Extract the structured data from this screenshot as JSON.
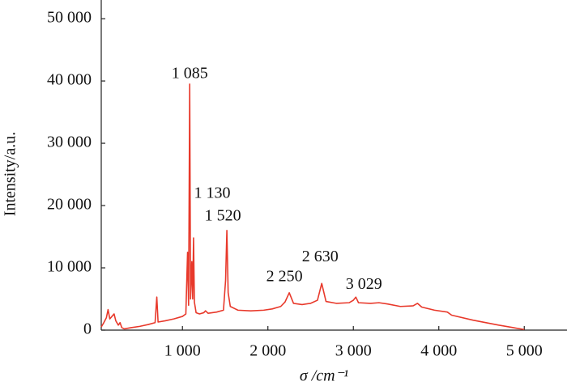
{
  "chart_data": {
    "type": "line",
    "xlabel": "σ /cm⁻¹",
    "ylabel": "Intensity/a.u.",
    "color": "#e8392b",
    "x": [
      50,
      80,
      110,
      130,
      150,
      175,
      200,
      220,
      250,
      270,
      290,
      320,
      400,
      500,
      600,
      680,
      700,
      715,
      800,
      900,
      1000,
      1040,
      1060,
      1072,
      1085,
      1095,
      1110,
      1120,
      1130,
      1140,
      1160,
      1200,
      1250,
      1270,
      1300,
      1400,
      1480,
      1505,
      1520,
      1535,
      1560,
      1650,
      1800,
      1950,
      2050,
      2150,
      2200,
      2250,
      2300,
      2400,
      2500,
      2580,
      2630,
      2680,
      2800,
      2950,
      3000,
      3029,
      3060,
      3200,
      3300,
      3400,
      3550,
      3700,
      3750,
      3800,
      3950,
      4100,
      4150,
      4400,
      4700,
      5000
    ],
    "values": [
      500,
      1200,
      2000,
      3300,
      1800,
      2200,
      2600,
      1500,
      800,
      1200,
      400,
      200,
      400,
      600,
      900,
      1200,
      5300,
      1300,
      1500,
      1800,
      2200,
      2600,
      12500,
      4000,
      39500,
      5000,
      11000,
      5000,
      14800,
      4500,
      2800,
      2600,
      2800,
      3100,
      2700,
      2900,
      3200,
      8000,
      16000,
      6000,
      3800,
      3200,
      3100,
      3200,
      3400,
      3800,
      4500,
      6000,
      4300,
      4100,
      4300,
      4800,
      7500,
      4600,
      4300,
      4400,
      4800,
      5300,
      4400,
      4300,
      4400,
      4200,
      3800,
      3900,
      4300,
      3700,
      3200,
      2900,
      2400,
      1600,
      800,
      100
    ],
    "xlim": [
      50,
      5500
    ],
    "ylim": [
      0,
      53000
    ],
    "xticks": [
      {
        "value": 1000,
        "label": "1 000"
      },
      {
        "value": 2000,
        "label": "2 000"
      },
      {
        "value": 3000,
        "label": "3 000"
      },
      {
        "value": 4000,
        "label": "4 000"
      },
      {
        "value": 5000,
        "label": "5 000"
      }
    ],
    "yticks": [
      0,
      {
        "value": 10000,
        "label": "10 000"
      },
      {
        "value": 20000,
        "label": "20 000"
      },
      {
        "value": 30000,
        "label": "30 000"
      },
      {
        "value": 40000,
        "label": "40 000"
      },
      {
        "value": 50000,
        "label": "50 000"
      }
    ],
    "annotations": [
      {
        "value": 1085,
        "label": "1 085"
      },
      {
        "value": 1130,
        "label": "1 130"
      },
      {
        "value": 1520,
        "label": "1 520"
      },
      {
        "value": 2250,
        "label": "2 250"
      },
      {
        "value": 2630,
        "label": "2 630"
      },
      {
        "value": 3029,
        "label": "3 029"
      }
    ]
  }
}
